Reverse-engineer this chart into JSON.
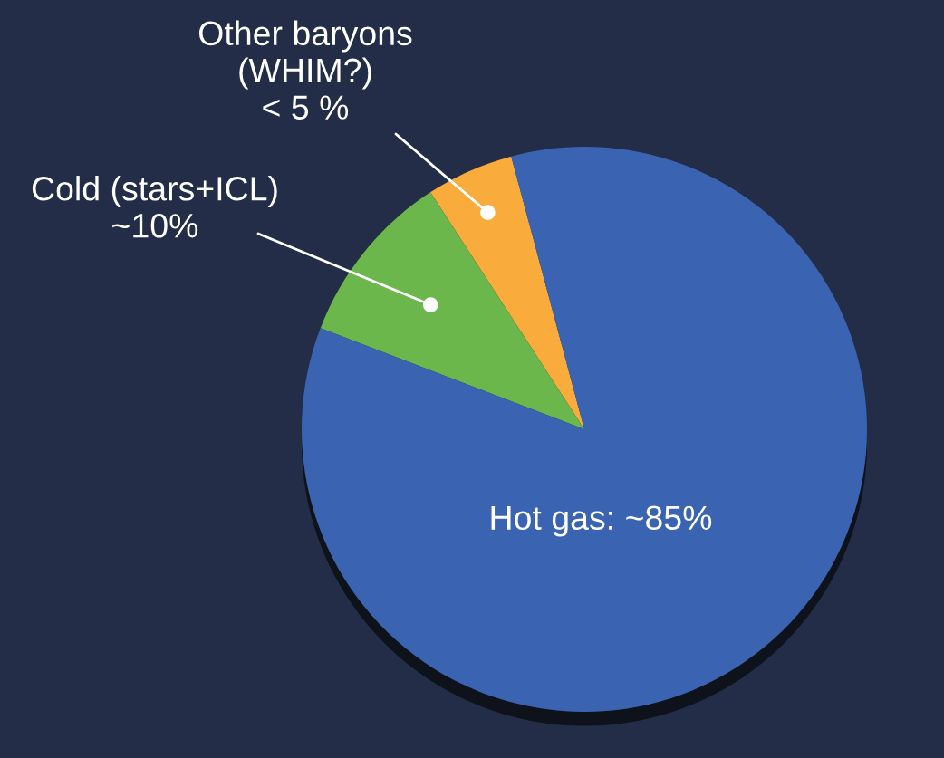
{
  "chart_data": {
    "type": "pie",
    "categories": [
      "Other baryons\n(WHIM?)\n< 5 %",
      "Cold (stars+ICL)\n~10%",
      "Hot gas: ~85%"
    ],
    "values": [
      5,
      10,
      85
    ],
    "colors": [
      "#f9ab3b",
      "#6cb74c",
      "#3a64b2"
    ]
  }
}
